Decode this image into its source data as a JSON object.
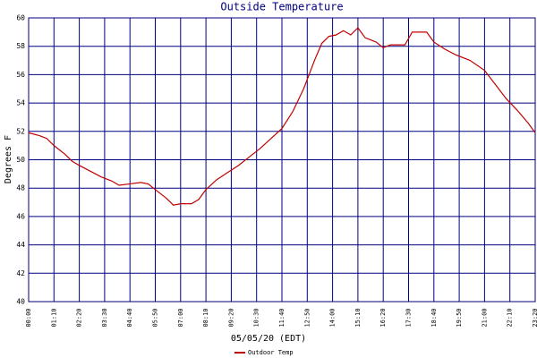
{
  "chart_data": {
    "type": "line",
    "title": "Outside Temperature",
    "x_label": "05/05/20 (EDT)",
    "y_label": "Degrees F",
    "x": [
      0,
      30,
      50,
      70,
      100,
      120,
      140,
      170,
      200,
      230,
      250,
      280,
      310,
      330,
      350,
      380,
      400,
      420,
      450,
      470,
      490,
      520,
      550,
      580,
      610,
      640,
      670,
      700,
      730,
      760,
      790,
      810,
      830,
      850,
      870,
      890,
      910,
      930,
      960,
      980,
      1000,
      1020,
      1040,
      1060,
      1080,
      1100,
      1120,
      1150,
      1180,
      1220,
      1260,
      1290,
      1320,
      1350,
      1380,
      1400
    ],
    "series": [
      {
        "name": "Outdoor Temp",
        "color": "#c00000",
        "values": [
          51.9,
          51.7,
          51.5,
          51.0,
          50.4,
          49.9,
          49.6,
          49.2,
          48.8,
          48.5,
          48.2,
          48.3,
          48.4,
          48.3,
          47.9,
          47.3,
          46.8,
          46.9,
          46.9,
          47.2,
          47.9,
          48.6,
          49.1,
          49.6,
          50.2,
          50.8,
          51.5,
          52.2,
          53.4,
          55.0,
          57.0,
          58.2,
          58.7,
          58.8,
          59.1,
          58.8,
          59.3,
          58.6,
          58.3,
          57.9,
          58.1,
          58.1,
          58.1,
          59.0,
          59.0,
          59.0,
          58.3,
          57.8,
          57.4,
          57.0,
          56.3,
          55.3,
          54.3,
          53.5,
          52.6,
          51.9
        ]
      }
    ],
    "xlim": [
      0,
      1400
    ],
    "xticks": [
      {
        "value": 0,
        "label": "00:00"
      },
      {
        "value": 70,
        "label": "01:10"
      },
      {
        "value": 140,
        "label": "02:20"
      },
      {
        "value": 210,
        "label": "03:30"
      },
      {
        "value": 280,
        "label": "04:40"
      },
      {
        "value": 350,
        "label": "05:50"
      },
      {
        "value": 420,
        "label": "07:00"
      },
      {
        "value": 490,
        "label": "08:10"
      },
      {
        "value": 560,
        "label": "09:20"
      },
      {
        "value": 630,
        "label": "10:30"
      },
      {
        "value": 700,
        "label": "11:40"
      },
      {
        "value": 770,
        "label": "12:50"
      },
      {
        "value": 840,
        "label": "14:00"
      },
      {
        "value": 910,
        "label": "15:10"
      },
      {
        "value": 980,
        "label": "16:20"
      },
      {
        "value": 1050,
        "label": "17:30"
      },
      {
        "value": 1120,
        "label": "18:40"
      },
      {
        "value": 1190,
        "label": "19:50"
      },
      {
        "value": 1260,
        "label": "21:00"
      },
      {
        "value": 1330,
        "label": "22:10"
      },
      {
        "value": 1400,
        "label": "23:20"
      }
    ],
    "ylim": [
      40,
      60
    ],
    "yticks": [
      40,
      42,
      44,
      46,
      48,
      50,
      52,
      54,
      56,
      58,
      60
    ],
    "grid": true,
    "grid_color": "#000080",
    "legend": "bottom"
  }
}
